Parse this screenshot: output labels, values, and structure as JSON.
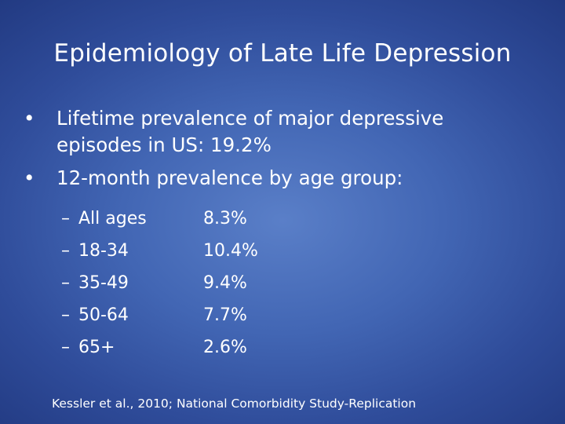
{
  "slide": {
    "title": "Epidemiology of Late Life Depression",
    "bullets": [
      {
        "marker": "•",
        "text_line1": "Lifetime prevalence of major depressive",
        "text_line2": "episodes in US: 19.2%"
      },
      {
        "marker": "•",
        "text_line1": "12-month prevalence by age group:"
      }
    ],
    "sub_items": [
      {
        "marker": "–",
        "group": "All ages",
        "value": "8.3%"
      },
      {
        "marker": "–",
        "group": "18-34",
        "value": "10.4%"
      },
      {
        "marker": "–",
        "group": "35-49",
        "value": "9.4%"
      },
      {
        "marker": "–",
        "group": "50-64",
        "value": "7.7%"
      },
      {
        "marker": "–",
        "group": "65+",
        "value": "2.6%"
      }
    ],
    "source": "Kessler et al., 2010; National Comorbidity Study-Replication"
  },
  "colors": {
    "background_center": "#5a7fc8",
    "background_edge": "#223a82",
    "text": "#ffffff"
  }
}
